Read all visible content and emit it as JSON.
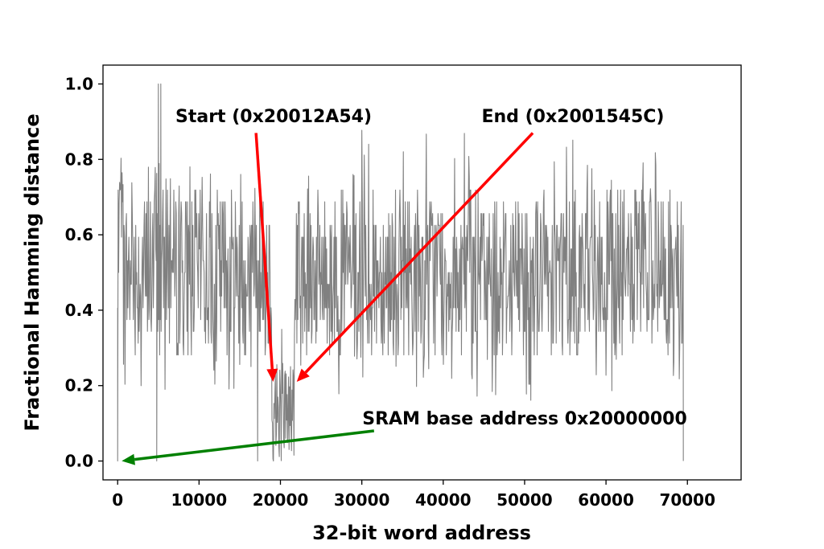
{
  "chart_data": {
    "type": "line",
    "title": "",
    "xlabel": "32-bit word address",
    "ylabel": "Fractional Hamming distance",
    "xlim": [
      -1800,
      76600
    ],
    "ylim": [
      -0.05,
      1.05
    ],
    "xticks": [
      0,
      10000,
      20000,
      30000,
      40000,
      50000,
      60000,
      70000
    ],
    "xtick_labels": [
      "0",
      "10000",
      "20000",
      "30000",
      "40000",
      "50000",
      "60000",
      "70000"
    ],
    "yticks": [
      0.0,
      0.2,
      0.4,
      0.6,
      0.8,
      1.0
    ],
    "ytick_labels": [
      "0.0",
      "0.2",
      "0.4",
      "0.6",
      "0.8",
      "1.0"
    ],
    "grid": false,
    "legend": "none",
    "series": [
      {
        "color": "#808080",
        "points_described": "dense noisy signal, one value per 32-bit word",
        "segments": [
          {
            "x_range": [
              0,
              18900
            ],
            "typical_band": [
              0.28,
              0.72
            ],
            "occasional_extremes": [
              0.19,
              0.81
            ]
          },
          {
            "x_range": [
              18900,
              21800
            ],
            "typical_band": [
              0.0,
              0.28
            ],
            "occasional_extremes": [
              0.0,
              0.44
            ]
          },
          {
            "x_range": [
              21800,
              69500
            ],
            "typical_band": [
              0.28,
              0.72
            ],
            "occasional_extremes": [
              0.16,
              0.88
            ]
          }
        ],
        "notable_points": [
          {
            "x": 0,
            "y": 0.0
          },
          {
            "x": 4800,
            "y": 0.0
          },
          {
            "x": 5000,
            "y": 1.0
          },
          {
            "x": 5300,
            "y": 1.0
          },
          {
            "x": 17200,
            "y": 0.0
          },
          {
            "x": 69500,
            "y": 0.0
          }
        ]
      }
    ],
    "annotations": [
      {
        "text": "Start (0x20012A54)",
        "arrow_from": [
          17000,
          0.87
        ],
        "arrow_to": [
          19100,
          0.21
        ],
        "color": "#ff0000"
      },
      {
        "text": "End (0x2001545C)",
        "arrow_from": [
          51000,
          0.87
        ],
        "arrow_to": [
          22000,
          0.21
        ],
        "color": "#ff0000"
      },
      {
        "text": "SRAM base address 0x20000000",
        "arrow_from": [
          31500,
          0.08
        ],
        "arrow_to": [
          500,
          0.0
        ],
        "color": "#008000"
      }
    ]
  }
}
